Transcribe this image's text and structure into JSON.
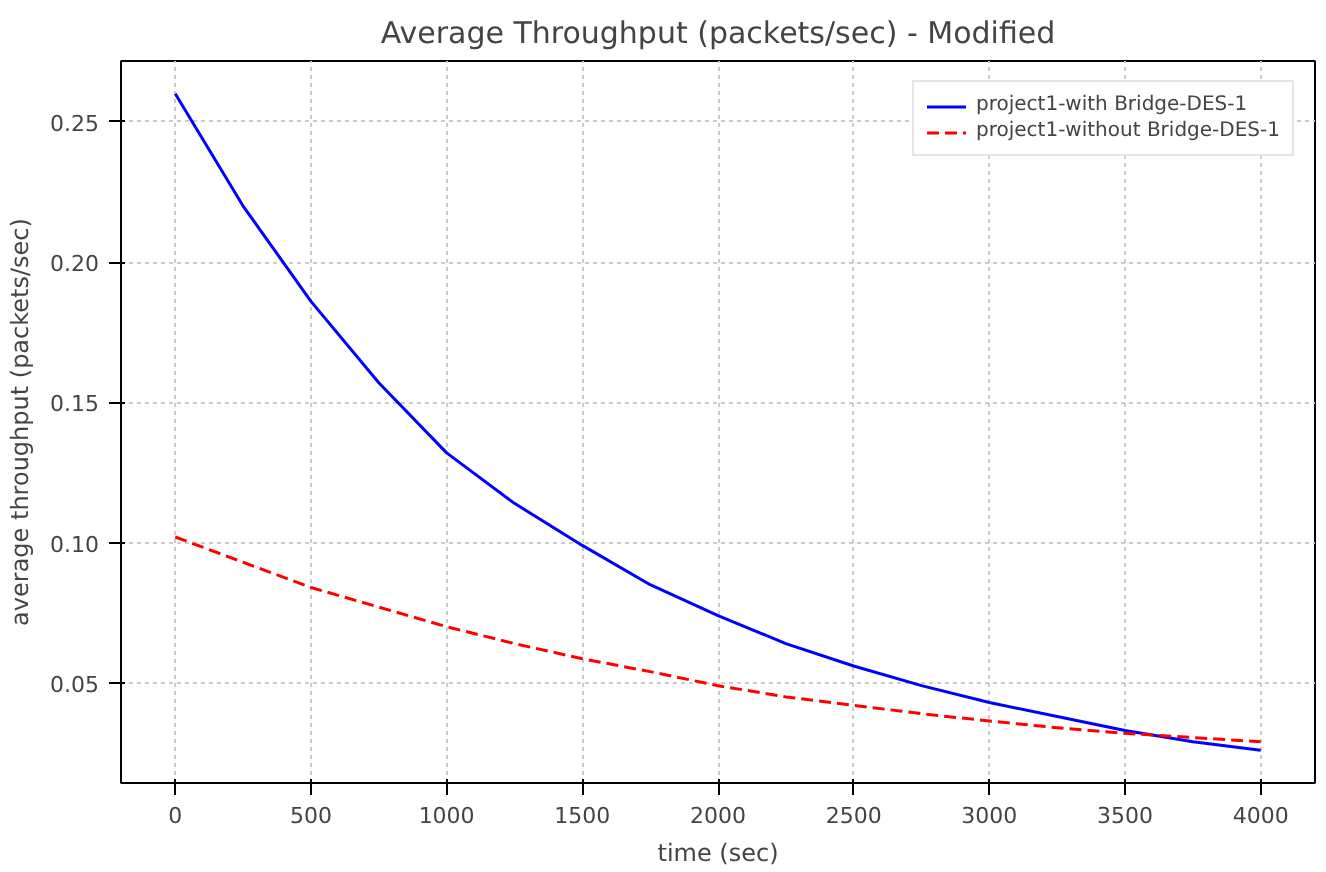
{
  "chart_data": {
    "type": "line",
    "title": "Average Throughput (packets/sec) - Modified",
    "xlabel": "time (sec)",
    "ylabel": "average throughput (packets/sec)",
    "x": [
      0,
      250,
      500,
      750,
      1000,
      1250,
      1500,
      1750,
      2000,
      2250,
      2500,
      2750,
      3000,
      3250,
      3500,
      3750,
      4000
    ],
    "series": [
      {
        "name": "project1-with Bridge-DES-1",
        "color": "#0000ff",
        "line_style": "solid",
        "values": [
          0.26,
          0.22,
          0.186,
          0.157,
          0.132,
          0.114,
          0.099,
          0.085,
          0.074,
          0.064,
          0.056,
          0.049,
          0.043,
          0.038,
          0.033,
          0.029,
          0.026
        ]
      },
      {
        "name": "project1-without Bridge-DES-1",
        "color": "#ff0000",
        "line_style": "dashed",
        "values": [
          0.102,
          0.093,
          0.084,
          0.077,
          0.07,
          0.064,
          0.0586,
          0.054,
          0.049,
          0.045,
          0.042,
          0.039,
          0.0364,
          0.034,
          0.032,
          0.0305,
          0.029
        ]
      }
    ],
    "xlim": [
      -200,
      4200
    ],
    "ylim": [
      0.0143,
      0.2717
    ],
    "xticks": [
      0,
      500,
      1000,
      1500,
      2000,
      2500,
      3000,
      3500,
      4000
    ],
    "yticks": [
      {
        "value": 0.05,
        "label": "0.05"
      },
      {
        "value": 0.1,
        "label": "0.10"
      },
      {
        "value": 0.15,
        "label": "0.15"
      },
      {
        "value": 0.2,
        "label": "0.20"
      },
      {
        "value": 0.25,
        "label": "0.25"
      }
    ],
    "grid": true,
    "legend": "top right"
  }
}
